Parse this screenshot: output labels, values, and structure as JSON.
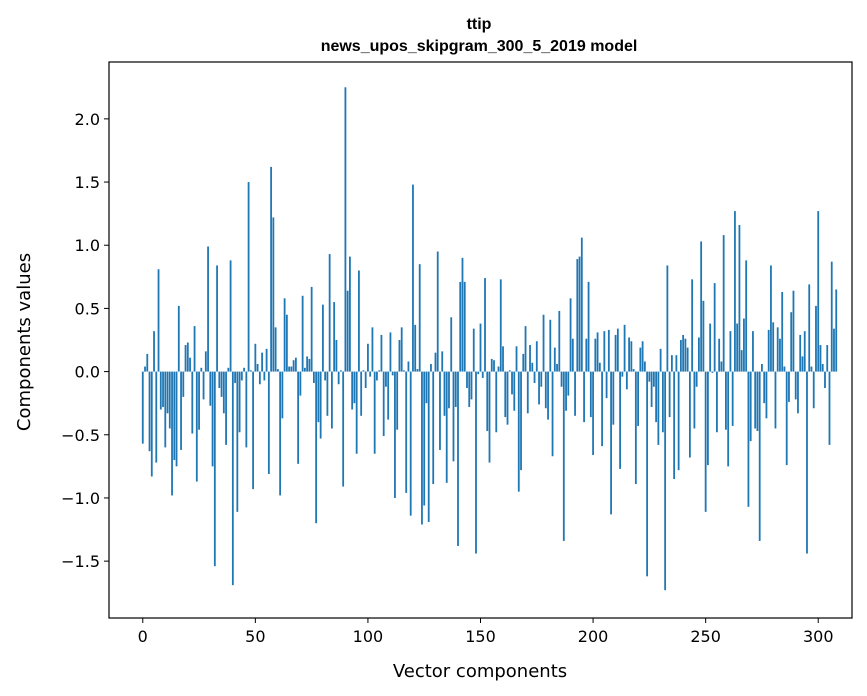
{
  "chart_data": {
    "type": "bar",
    "title": "ttip",
    "subtitle": "news_upos_skipgram_300_5_2019 model",
    "xlabel": "Vector components",
    "ylabel": "Components values",
    "xlim": [
      -15,
      315
    ],
    "ylim": [
      -1.95,
      2.45
    ],
    "xticks": [
      0,
      50,
      100,
      150,
      200,
      250,
      300
    ],
    "yticks": [
      -1.5,
      -1.0,
      -0.5,
      0.0,
      0.5,
      1.0,
      1.5,
      2.0
    ],
    "ytick_labels": [
      "−1.5",
      "−1.0",
      "−0.5",
      "0.0",
      "0.5",
      "1.0",
      "1.5",
      "2.0"
    ],
    "bar_color": "#1f77b4",
    "grid": false,
    "values": [
      -0.57,
      0.04,
      0.14,
      -0.63,
      -0.83,
      0.32,
      -0.72,
      0.81,
      -0.3,
      -0.28,
      -0.6,
      -0.33,
      -0.45,
      -0.98,
      -0.7,
      -0.75,
      0.52,
      -0.62,
      -0.2,
      0.21,
      0.23,
      0.11,
      -0.49,
      0.36,
      -0.87,
      -0.46,
      0.03,
      -0.22,
      0.16,
      0.99,
      -0.27,
      -0.75,
      -1.54,
      0.84,
      -0.13,
      -0.2,
      -0.33,
      -0.58,
      0.03,
      0.88,
      -1.69,
      -0.09,
      -1.11,
      -0.48,
      -0.07,
      0.03,
      -0.6,
      1.5,
      0.01,
      -0.93,
      0.22,
      0.06,
      -0.1,
      0.15,
      -0.07,
      0.18,
      -0.81,
      1.62,
      1.22,
      0.35,
      0.02,
      -0.98,
      -0.37,
      0.58,
      0.45,
      0.04,
      0.04,
      0.09,
      0.11,
      -0.73,
      -0.19,
      0.6,
      0.03,
      0.12,
      0.1,
      0.67,
      -0.09,
      -1.2,
      -0.4,
      -0.53,
      0.53,
      -0.07,
      -0.35,
      0.93,
      -0.45,
      0.55,
      0.25,
      -0.1,
      0.01,
      -0.91,
      2.25,
      0.64,
      0.91,
      -0.3,
      -0.25,
      -0.65,
      0.8,
      -0.35,
      0.01,
      -0.13,
      0.22,
      -0.04,
      0.35,
      -0.65,
      -0.07,
      0.01,
      0.29,
      -0.51,
      -0.12,
      -0.38,
      0.31,
      -0.03,
      -1.0,
      -0.46,
      0.25,
      0.35,
      0.01,
      -0.96,
      0.08,
      -1.14,
      1.48,
      0.37,
      0.02,
      0.85,
      -1.21,
      -1.06,
      -0.25,
      -1.19,
      0.06,
      -0.89,
      0.15,
      0.95,
      -0.62,
      0.16,
      -0.35,
      -0.88,
      -0.29,
      0.43,
      -0.71,
      -0.28,
      -1.38,
      0.71,
      0.9,
      0.71,
      -0.13,
      -0.28,
      -0.22,
      0.34,
      -1.44,
      -0.02,
      0.38,
      -0.05,
      0.74,
      -0.47,
      -0.72,
      0.1,
      0.09,
      -0.48,
      0.04,
      0.73,
      0.2,
      -0.36,
      -0.42,
      0.01,
      -0.18,
      -0.31,
      0.2,
      -0.95,
      -0.78,
      0.14,
      0.36,
      -0.33,
      0.21,
      0.07,
      -0.09,
      0.24,
      -0.26,
      -0.12,
      0.45,
      -0.29,
      -0.38,
      0.41,
      -0.67,
      0.19,
      0.06,
      0.48,
      -0.12,
      -1.34,
      -0.31,
      -0.19,
      0.58,
      0.26,
      -0.35,
      0.89,
      0.91,
      1.06,
      -0.4,
      0.26,
      0.71,
      -0.36,
      -0.66,
      0.26,
      0.31,
      0.07,
      -0.59,
      0.32,
      -0.21,
      0.33,
      -1.13,
      -0.42,
      0.29,
      0.34,
      -0.77,
      -0.04,
      0.37,
      -0.14,
      0.27,
      0.24,
      0.02,
      -0.89,
      -0.43,
      0.19,
      0.24,
      0.08,
      -1.62,
      -0.08,
      -0.28,
      -0.12,
      -0.4,
      -0.58,
      0.18,
      -0.48,
      -1.73,
      0.84,
      -0.36,
      0.13,
      -0.85,
      0.13,
      -0.78,
      0.25,
      0.29,
      0.26,
      0.19,
      -0.68,
      0.73,
      -0.45,
      -0.12,
      0.27,
      1.03,
      0.56,
      -1.11,
      -0.74,
      0.38,
      -0.01,
      0.7,
      -0.48,
      0.26,
      0.08,
      1.08,
      -0.46,
      -0.75,
      0.32,
      -0.43,
      1.27,
      0.38,
      1.16,
      0.17,
      0.42,
      0.88,
      -1.07,
      -0.55,
      0.32,
      -0.45,
      -0.47,
      -1.34,
      0.06,
      -0.25,
      -0.37,
      0.33,
      0.84,
      0.39,
      -0.45,
      0.35,
      0.26,
      0.63,
      0.04,
      -0.74,
      -0.24,
      0.47,
      0.64,
      -0.22,
      -0.33,
      0.29,
      0.12,
      0.32,
      -1.44,
      0.69,
      0.04,
      -0.29,
      0.52,
      1.27,
      0.21,
      0.06,
      -0.13,
      0.21,
      -0.58,
      0.87,
      0.34,
      0.65
    ]
  }
}
